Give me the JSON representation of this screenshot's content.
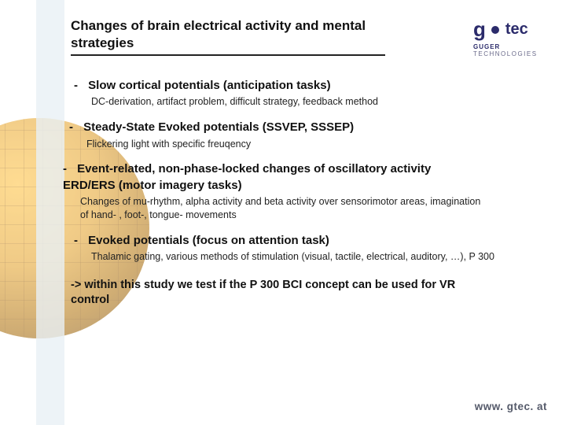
{
  "title": "Changes of brain electrical activity and mental strategies",
  "items": [
    {
      "head": "Slow cortical potentials (anticipation tasks)",
      "sub": "DC-derivation, artifact problem, difficult strategy, feedback method",
      "indent": 14
    },
    {
      "head": "Steady-State Evoked potentials (SSVEP, SSSEP)",
      "sub": "Flickering light with specific freuqency",
      "indent": 8
    },
    {
      "head": "Event-related, non-phase-locked changes of oscillatory activity ERD/ERS (motor imagery tasks)",
      "sub": "Changes of mu-rhythm, alpha activity and beta activity over sensorimotor areas, imagination of hand- , foot-, tongue- movements",
      "indent": 0
    },
    {
      "head": "Evoked potentials (focus on attention task)",
      "sub": "Thalamic gating, various methods of stimulation (visual, tactile, electrical, auditory, …), P 300",
      "indent": 14
    }
  ],
  "conclusion": "-> within this study we test if the P 300 BCI concept can be used for VR control",
  "logo": {
    "g": "g",
    "tec": "tec",
    "sub1": "GUGER",
    "sub2": "TECHNOLOGIES"
  },
  "footer": "www. gtec. at",
  "colors": {
    "title_underline": "#222222",
    "text": "#111111",
    "logo": "#2b2b6b",
    "footer": "#555a6a",
    "globe_light": "#ffc54a",
    "globe_dark": "#7a5010",
    "left_band": "#e9f0f5"
  }
}
